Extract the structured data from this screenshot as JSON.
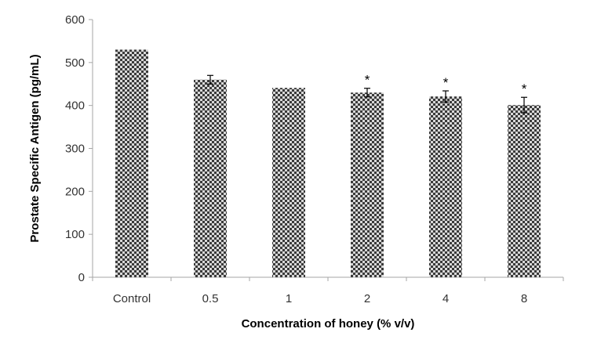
{
  "chart_data": {
    "type": "bar",
    "categories": [
      "Control",
      "0.5",
      "1",
      "2",
      "4",
      "8"
    ],
    "values": [
      530,
      460,
      441,
      430,
      421,
      401
    ],
    "errors": [
      0,
      10,
      0,
      10,
      13,
      18
    ],
    "annotations": [
      "",
      "",
      "",
      "*",
      "*",
      "*"
    ],
    "xlabel": "Concentration of honey (% v/v)",
    "ylabel": "Prostate Specific Antigen (pg/mL)",
    "ylim": [
      0,
      600
    ],
    "yticks": [
      0,
      100,
      200,
      300,
      400,
      500,
      600
    ],
    "grid": false,
    "legend": "none",
    "colors": {
      "bar_dark": "#3a3a3a",
      "bar_light": "#d8d8d8",
      "axis": "#a6a6a6"
    }
  }
}
